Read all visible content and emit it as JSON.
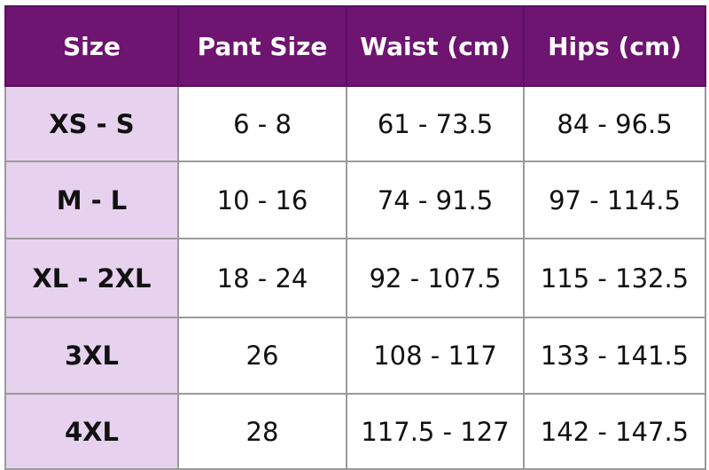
{
  "colors": {
    "header_bg": "#6e1471",
    "header_text": "#ffffff",
    "size_col_bg": "#e6d2ee",
    "border": "#9a9a9a"
  },
  "table": {
    "headers": [
      "Size",
      "Pant Size",
      "Waist (cm)",
      "Hips (cm)"
    ],
    "rows": [
      [
        "XS - S",
        "6 - 8",
        "61 - 73.5",
        "84 - 96.5"
      ],
      [
        "M - L",
        "10 - 16",
        "74 - 91.5",
        "97 - 114.5"
      ],
      [
        "XL - 2XL",
        "18 - 24",
        "92 - 107.5",
        "115 - 132.5"
      ],
      [
        "3XL",
        "26",
        "108 - 117",
        "133 - 141.5"
      ],
      [
        "4XL",
        "28",
        "117.5 - 127",
        "142 - 147.5"
      ]
    ]
  }
}
